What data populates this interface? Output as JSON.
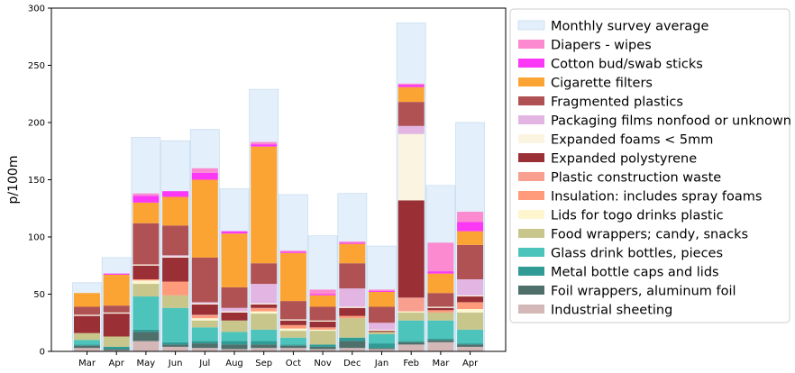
{
  "chart_data": {
    "type": "bar",
    "stacked": true,
    "title": "",
    "xlabel": "",
    "ylabel": "p/100m",
    "ylim": [
      0,
      300
    ],
    "yticks": [
      0,
      50,
      100,
      150,
      200,
      250,
      300
    ],
    "categories": [
      "Mar",
      "Apr",
      "May",
      "Jun",
      "Jul",
      "Aug",
      "Sep",
      "Oct",
      "Nov",
      "Dec",
      "Jan",
      "Feb",
      "Mar",
      "Apr"
    ],
    "legend_position": "right",
    "monthly_average": {
      "name": "Monthly survey average",
      "color": "#e3effb",
      "values": [
        60,
        82,
        187,
        184,
        194,
        142,
        229,
        137,
        101,
        138,
        92,
        287,
        145,
        200
      ]
    },
    "series": [
      {
        "name": "Industrial sheeting",
        "color": "#d4b8b8",
        "values": [
          3,
          1,
          9,
          4,
          3,
          2,
          3,
          3,
          2,
          3,
          2,
          6,
          8,
          4
        ]
      },
      {
        "name": "Foil wrappers, aluminum foil",
        "color": "#4f6f6b",
        "values": [
          2,
          1,
          8,
          2,
          4,
          4,
          3,
          2,
          2,
          6,
          1,
          2,
          2,
          2
        ]
      },
      {
        "name": "Metal bottle caps and lids",
        "color": "#2f9b94",
        "values": [
          1,
          2,
          2,
          2,
          2,
          3,
          3,
          1,
          2,
          3,
          4,
          1,
          1,
          1
        ]
      },
      {
        "name": "Glass drink bottles, pieces",
        "color": "#4cc4bb",
        "values": [
          4,
          0,
          29,
          30,
          12,
          8,
          10,
          6,
          0,
          0,
          8,
          18,
          16,
          12
        ]
      },
      {
        "name": "Food wrappers; candy, snacks",
        "color": "#c8c68a",
        "values": [
          6,
          9,
          11,
          11,
          6,
          10,
          14,
          6,
          12,
          17,
          2,
          7,
          7,
          15
        ]
      },
      {
        "name": "Lids for togo drinks plastic",
        "color": "#fff6d0",
        "values": [
          0,
          0,
          3,
          0,
          2,
          0,
          2,
          2,
          1,
          0,
          0,
          1,
          0,
          3
        ]
      },
      {
        "name": "Insulation: includes spray foams",
        "color": "#ff9a7a",
        "values": [
          0,
          0,
          1,
          12,
          2,
          0,
          2,
          3,
          2,
          2,
          0,
          0,
          2,
          6
        ]
      },
      {
        "name": "Plastic construction waste",
        "color": "#f89f8f",
        "values": [
          0,
          0,
          0,
          0,
          1,
          0,
          1,
          0,
          0,
          0,
          0,
          12,
          0,
          0
        ]
      },
      {
        "name": "Expanded polystyrene",
        "color": "#9a2f35",
        "values": [
          15,
          20,
          12,
          21,
          9,
          7,
          3,
          4,
          5,
          7,
          1,
          85,
          2,
          5
        ]
      },
      {
        "name": "Expanded foams < 5mm",
        "color": "#fbf4e0",
        "values": [
          1,
          1,
          1,
          1,
          1,
          1,
          1,
          1,
          1,
          1,
          1,
          58,
          1,
          1
        ]
      },
      {
        "name": "Packaging films nonfood or unknown",
        "color": "#e3b5e3",
        "values": [
          0,
          0,
          0,
          1,
          1,
          3,
          17,
          0,
          0,
          16,
          6,
          7,
          0,
          14
        ]
      },
      {
        "name": "Fragmented plastics",
        "color": "#b05253",
        "values": [
          7,
          6,
          36,
          26,
          39,
          18,
          18,
          16,
          12,
          22,
          14,
          21,
          12,
          30
        ]
      },
      {
        "name": "Cigarette filters",
        "color": "#fca433",
        "values": [
          12,
          27,
          18,
          25,
          68,
          47,
          102,
          42,
          10,
          17,
          13,
          13,
          17,
          12
        ]
      },
      {
        "name": "Cotton bud/swab sticks",
        "color": "#fb38f6",
        "values": [
          0,
          1,
          6,
          5,
          6,
          2,
          2,
          1,
          1,
          1,
          1,
          2,
          2,
          8
        ]
      },
      {
        "name": "Diapers - wipes",
        "color": "#fb8ad0",
        "values": [
          0,
          0,
          2,
          0,
          4,
          0,
          2,
          1,
          4,
          1,
          1,
          1,
          25,
          9
        ]
      }
    ]
  }
}
